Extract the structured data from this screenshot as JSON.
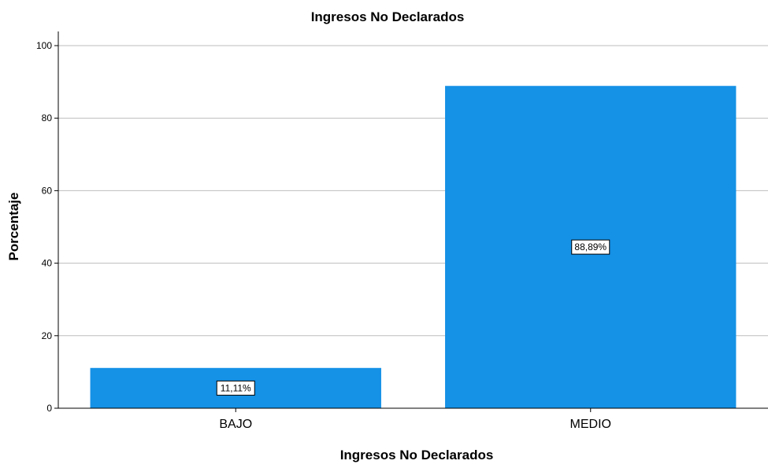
{
  "chart_data": {
    "type": "bar",
    "title": "Ingresos No Declarados",
    "xlabel": "Ingresos No Declarados",
    "ylabel": "Porcentaje",
    "categories": [
      "BAJO",
      "MEDIO"
    ],
    "values": [
      11.11,
      88.89
    ],
    "data_labels": [
      "11,11%",
      "88,89%"
    ],
    "ylim": [
      0,
      100
    ],
    "yticks": [
      "0",
      "20",
      "40",
      "60",
      "80",
      "100"
    ],
    "grid": "horizontal",
    "bar_color": "#1591e6",
    "grid_color": "#bdbdbd"
  }
}
